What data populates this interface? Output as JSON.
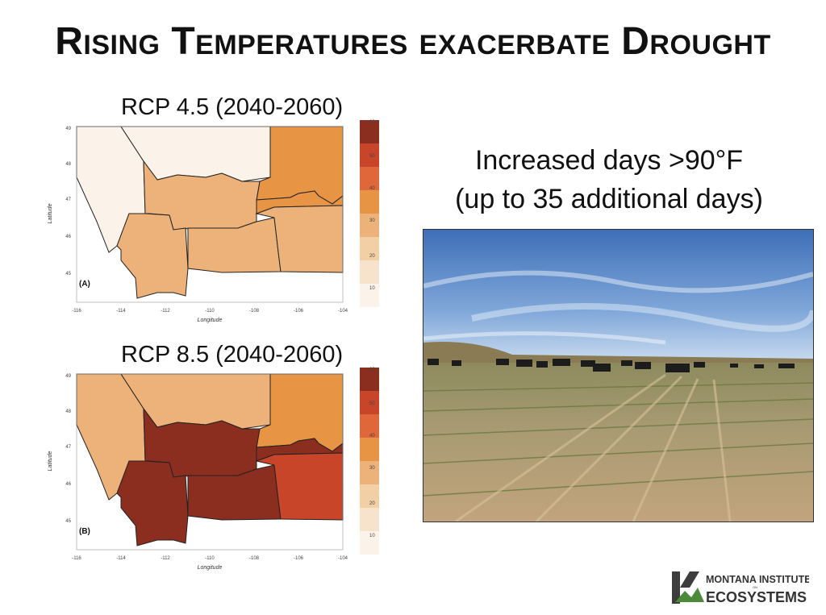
{
  "slide": {
    "title": "Rising Temperatures exacerbate Drought"
  },
  "maps": [
    {
      "title": "RCP 4.5 (2040-2060)",
      "panel": "(A)",
      "region_classes": [
        "c1",
        "c1",
        "c5",
        "c4",
        "c4",
        "c4",
        "c5",
        "c4",
        "c4"
      ]
    },
    {
      "title": "RCP 8.5 (2040-2060)",
      "panel": "(B)",
      "region_classes": [
        "c4",
        "c4",
        "c5",
        "c8",
        "c8",
        "c8",
        "c8",
        "c7",
        "c8"
      ]
    }
  ],
  "axes": {
    "ylabel": "Latitude",
    "xlabel": "Longitude",
    "y_ticks": [
      "49",
      "48",
      "47",
      "46",
      "45"
    ],
    "x_ticks": [
      "-116",
      "-114",
      "-112",
      "-110",
      "-108",
      "-106",
      "-104"
    ]
  },
  "legend": {
    "ticks": [
      "60",
      "50",
      "40",
      "30",
      "20",
      "10"
    ],
    "colors": {
      "c8": "#8b2e1f",
      "c7": "#c9452a",
      "c6": "#e0673a",
      "c5": "#e89445",
      "c4": "#edb27a",
      "c3": "#f3cfa5",
      "c2": "#f7e3cc",
      "c1": "#fbf3ea"
    }
  },
  "caption": {
    "line1": "Increased days >90°F",
    "line2": "(up to 35 additional days)"
  },
  "logo": {
    "line1": "MONTANA INSTITUTE",
    "line2": "ON",
    "line3": "ECOSYSTEMS"
  }
}
